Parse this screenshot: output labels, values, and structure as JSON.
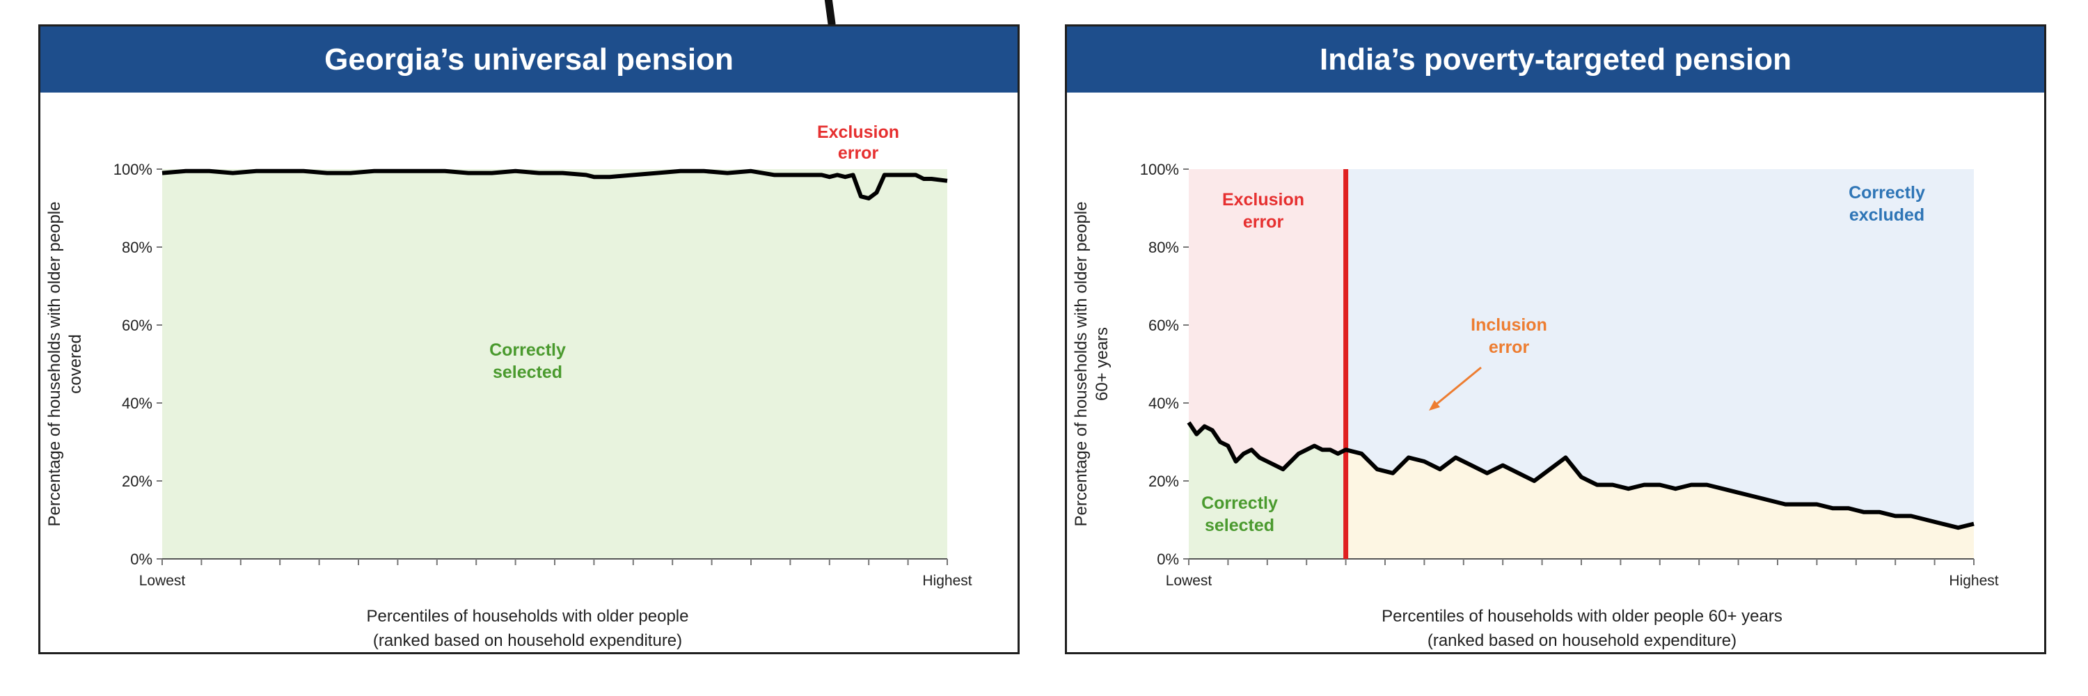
{
  "colors": {
    "header_bg": "#1e4e8c",
    "header_text": "#ffffff",
    "green_fill": "#e8f3de",
    "pink_fill": "#fbe9ea",
    "blue_fill": "#e9f0f9",
    "yellow_fill": "#fdf6e3",
    "red": "#e63030",
    "green_text": "#4a9a2e",
    "blue_text": "#2e75b6",
    "orange": "#ed7d31",
    "line": "#000000",
    "cutoff_line": "#e02020"
  },
  "chart_data": [
    {
      "type": "line",
      "title": "Georgia’s universal pension",
      "xlabel_lines": [
        "Percentiles of households with older people",
        "(ranked based on household expenditure)"
      ],
      "ylabel_lines": [
        "Percentage of households with older people",
        "covered"
      ],
      "x_tick_labels": {
        "low": "Lowest",
        "high": "Highest"
      },
      "xlim": [
        0,
        100
      ],
      "ylim": [
        0,
        100
      ],
      "y_ticks": [
        0,
        20,
        40,
        60,
        80,
        100
      ],
      "y_tick_labels": [
        "0%",
        "20%",
        "40%",
        "60%",
        "80%",
        "100%"
      ],
      "annotations": {
        "exclusion_error": [
          "Exclusion",
          "error"
        ],
        "correctly_selected": [
          "Correctly",
          "selected"
        ]
      },
      "series": [
        {
          "x": [
            0,
            3,
            6,
            9,
            12,
            15,
            18,
            21,
            24,
            27,
            30,
            33,
            36,
            39,
            42,
            45,
            48,
            51,
            54,
            55,
            57,
            60,
            63,
            66,
            69,
            72,
            75,
            78,
            81,
            84,
            85,
            86,
            87,
            88,
            89,
            90,
            91,
            92,
            94,
            96,
            97,
            98,
            100
          ],
          "y": [
            99,
            99.5,
            99.5,
            99,
            99.5,
            99.5,
            99.5,
            99,
            99,
            99.5,
            99.5,
            99.5,
            99.5,
            99,
            99,
            99.5,
            99,
            99,
            98.5,
            98,
            98,
            98.5,
            99,
            99.5,
            99.5,
            99,
            99.5,
            98.5,
            98.5,
            98.5,
            98,
            98.5,
            98,
            98.5,
            93,
            92.5,
            94,
            98.5,
            98.5,
            98.5,
            97.5,
            97.5,
            97
          ]
        }
      ]
    },
    {
      "type": "line",
      "title": "India’s poverty-targeted pension",
      "xlabel_lines": [
        "Percentiles of households with older people 60+ years",
        "(ranked based on household expenditure)"
      ],
      "ylabel_lines": [
        "Percentage of households with older people",
        "60+ years"
      ],
      "x_tick_labels": {
        "low": "Lowest",
        "high": "Highest"
      },
      "xlim": [
        0,
        100
      ],
      "ylim": [
        0,
        100
      ],
      "y_ticks": [
        0,
        20,
        40,
        60,
        80,
        100
      ],
      "y_tick_labels": [
        "0%",
        "20%",
        "40%",
        "60%",
        "80%",
        "100%"
      ],
      "cutoff_x": 20,
      "annotations": {
        "exclusion_error": [
          "Exclusion",
          "error"
        ],
        "correctly_excluded": [
          "Correctly",
          "excluded"
        ],
        "inclusion_error": [
          "Inclusion",
          "error"
        ],
        "correctly_selected": [
          "Correctly",
          "selected"
        ]
      },
      "series": [
        {
          "x": [
            0,
            1,
            2,
            3,
            4,
            5,
            6,
            7,
            8,
            9,
            10,
            11,
            12,
            13,
            14,
            15,
            16,
            17,
            18,
            19,
            20,
            22,
            24,
            26,
            28,
            30,
            32,
            34,
            36,
            38,
            40,
            42,
            44,
            46,
            48,
            50,
            52,
            54,
            56,
            58,
            60,
            62,
            64,
            66,
            68,
            70,
            72,
            74,
            76,
            78,
            80,
            82,
            84,
            86,
            88,
            90,
            92,
            94,
            96,
            98,
            100
          ],
          "y": [
            35,
            32,
            34,
            33,
            30,
            29,
            25,
            27,
            28,
            26,
            25,
            24,
            23,
            25,
            27,
            28,
            29,
            28,
            28,
            27,
            28,
            27,
            23,
            22,
            26,
            25,
            23,
            26,
            24,
            22,
            24,
            22,
            20,
            23,
            26,
            21,
            19,
            19,
            18,
            19,
            19,
            18,
            19,
            19,
            18,
            17,
            16,
            15,
            14,
            14,
            14,
            13,
            13,
            12,
            12,
            11,
            11,
            10,
            9,
            8,
            9
          ]
        }
      ]
    }
  ]
}
